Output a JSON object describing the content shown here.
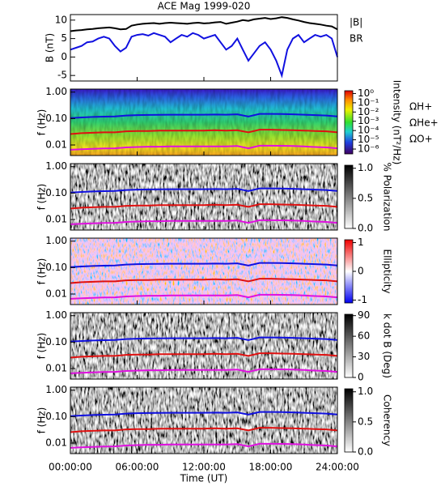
{
  "chart_data": [
    {
      "type": "line",
      "title": "ACE Mag 1999-020",
      "ylabel": "B (nT)",
      "ylim": [
        -6.5,
        11.5
      ],
      "yticks": [
        -5,
        0,
        5,
        10
      ],
      "xlim": [
        0,
        24
      ],
      "x": [
        0,
        0.5,
        1,
        1.5,
        2,
        2.5,
        3,
        3.5,
        4,
        4.5,
        5,
        5.5,
        6,
        6.5,
        7,
        7.5,
        8,
        8.5,
        9,
        9.5,
        10,
        10.5,
        11,
        11.5,
        12,
        12.5,
        13,
        13.5,
        14,
        14.5,
        15,
        15.5,
        16,
        16.5,
        17,
        17.5,
        18,
        18.5,
        19,
        19.5,
        20,
        20.5,
        21,
        21.5,
        22,
        22.5,
        23,
        23.5,
        24
      ],
      "series": [
        {
          "name": "|B|",
          "color": "#000000",
          "values": [
            7,
            7.2,
            7.3,
            7.5,
            7.6,
            7.8,
            7.9,
            8,
            7.8,
            7.5,
            7.6,
            8.5,
            8.8,
            9,
            9.1,
            9.2,
            9,
            9.2,
            9.3,
            9.2,
            9.1,
            9,
            9.2,
            9.3,
            9.1,
            9.2,
            9.4,
            9.5,
            9,
            9.3,
            9.6,
            10,
            9.8,
            10.2,
            10.4,
            10.6,
            10.3,
            10.5,
            10.8,
            10.6,
            10.2,
            9.9,
            9.5,
            9.2,
            9,
            8.8,
            8.5,
            8.3,
            7.5
          ]
        },
        {
          "name": "BR",
          "color": "#1010e0",
          "values": [
            2,
            2.5,
            3,
            4,
            4.2,
            5,
            5.5,
            5,
            3,
            1.5,
            2.5,
            5.5,
            6,
            6.2,
            5.8,
            6.5,
            6,
            5.5,
            4,
            5,
            6,
            5.5,
            6.5,
            6,
            5,
            5.5,
            6,
            4,
            2,
            3,
            5,
            2,
            -1,
            1,
            3,
            4,
            2,
            -1,
            -5,
            2,
            5,
            6,
            4,
            5,
            6,
            5.5,
            6,
            5,
            0
          ]
        }
      ]
    },
    {
      "type": "spectrogram",
      "ylabel": "f (Hz)",
      "log_y": true,
      "ylim": [
        0.004,
        1.3
      ],
      "yticks": [
        {
          "value": 1,
          "label": "1.00"
        },
        {
          "value": 0.1,
          "label": "0.10"
        },
        {
          "value": 0.01,
          "label": "0.01"
        }
      ],
      "colorbar_label": "Intensity (nT²/Hz)",
      "colormap": "rainbow",
      "clim": [
        3e-07,
        2
      ],
      "log_c": true,
      "cticks": [
        {
          "value": 1,
          "label": "10⁰"
        },
        {
          "value": 0.1,
          "label": "10⁻¹"
        },
        {
          "value": 0.01,
          "label": "10⁻²"
        },
        {
          "value": 0.001,
          "label": "10⁻³"
        },
        {
          "value": 0.0001,
          "label": "10⁻⁴"
        },
        {
          "value": 1e-05,
          "label": "10⁻⁵"
        },
        {
          "value": 1e-06,
          "label": "10⁻⁶"
        }
      ],
      "x": [
        0,
        1,
        2,
        3,
        4,
        5,
        6,
        7,
        8,
        9,
        10,
        11,
        12,
        13,
        14,
        15,
        16,
        17,
        18,
        19,
        20,
        21,
        22,
        23,
        24
      ],
      "series": [
        {
          "name": "ΩH+",
          "color": "#1010e0",
          "values": [
            0.105,
            0.11,
            0.115,
            0.118,
            0.12,
            0.13,
            0.135,
            0.137,
            0.138,
            0.14,
            0.14,
            0.14,
            0.14,
            0.142,
            0.14,
            0.145,
            0.12,
            0.15,
            0.15,
            0.148,
            0.145,
            0.14,
            0.135,
            0.13,
            0.12
          ]
        },
        {
          "name": "ΩHe+",
          "color": "#e01010",
          "values": [
            0.026,
            0.028,
            0.029,
            0.03,
            0.03,
            0.033,
            0.034,
            0.034,
            0.035,
            0.035,
            0.035,
            0.035,
            0.035,
            0.036,
            0.035,
            0.036,
            0.03,
            0.038,
            0.038,
            0.037,
            0.036,
            0.035,
            0.034,
            0.033,
            0.03
          ]
        },
        {
          "name": "ΩO+",
          "color": "#e010e0",
          "values": [
            0.0066,
            0.0069,
            0.0072,
            0.0074,
            0.0075,
            0.0081,
            0.0084,
            0.0086,
            0.0086,
            0.0088,
            0.0088,
            0.0088,
            0.0088,
            0.0089,
            0.0088,
            0.0091,
            0.0075,
            0.0094,
            0.0094,
            0.0093,
            0.0091,
            0.0088,
            0.0084,
            0.0081,
            0.0075
          ]
        }
      ]
    },
    {
      "type": "spectrogram",
      "ylabel": "f (Hz)",
      "log_y": true,
      "ylim": [
        0.004,
        1.3
      ],
      "yticks": [
        {
          "value": 1,
          "label": "1.00"
        },
        {
          "value": 0.1,
          "label": "0.10"
        },
        {
          "value": 0.01,
          "label": "0.01"
        }
      ],
      "colorbar_label": "% Polarization",
      "colormap": "gray",
      "clim": [
        0,
        1.05
      ],
      "cticks": [
        {
          "value": 1,
          "label": "1.0"
        },
        {
          "value": 0.5,
          "label": "0.5"
        },
        {
          "value": 0,
          "label": "0.0"
        }
      ]
    },
    {
      "type": "spectrogram",
      "ylabel": "f (Hz)",
      "log_y": true,
      "ylim": [
        0.004,
        1.3
      ],
      "yticks": [
        {
          "value": 1,
          "label": "1.00"
        },
        {
          "value": 0.1,
          "label": "0.10"
        },
        {
          "value": 0.01,
          "label": "0.01"
        }
      ],
      "colorbar_label": "Ellipticity",
      "colormap": "bwr",
      "clim": [
        -1.1,
        1.1
      ],
      "cticks": [
        1,
        0,
        -1
      ]
    },
    {
      "type": "spectrogram",
      "ylabel": "f (Hz)",
      "log_y": true,
      "ylim": [
        0.004,
        1.3
      ],
      "yticks": [
        {
          "value": 1,
          "label": "1.00"
        },
        {
          "value": 0.1,
          "label": "0.10"
        },
        {
          "value": 0.01,
          "label": "0.01"
        }
      ],
      "colorbar_label": "k dot B (Deg)",
      "colormap": "gray",
      "clim": [
        0,
        92
      ],
      "cticks": [
        90,
        60,
        30,
        0
      ]
    },
    {
      "type": "spectrogram",
      "ylabel": "f (Hz)",
      "log_y": true,
      "ylim": [
        0.004,
        1.3
      ],
      "yticks": [
        {
          "value": 1,
          "label": "1.00"
        },
        {
          "value": 0.1,
          "label": "0.10"
        },
        {
          "value": 0.01,
          "label": "0.01"
        }
      ],
      "colorbar_label": "Coherency",
      "colormap": "gray",
      "clim": [
        0,
        1.05
      ],
      "cticks": [
        {
          "value": 1,
          "label": "1.0"
        },
        {
          "value": 0.5,
          "label": "0.5"
        },
        {
          "value": 0,
          "label": "0.0"
        }
      ],
      "xlabel": "Time (UT)",
      "xticks": [
        {
          "value": 0,
          "label": "00:00:00"
        },
        {
          "value": 6,
          "label": "06:00:00"
        },
        {
          "value": 12,
          "label": "12:00:00"
        },
        {
          "value": 18,
          "label": "18:00:00"
        },
        {
          "value": 24,
          "label": "24:00:00"
        }
      ]
    }
  ]
}
